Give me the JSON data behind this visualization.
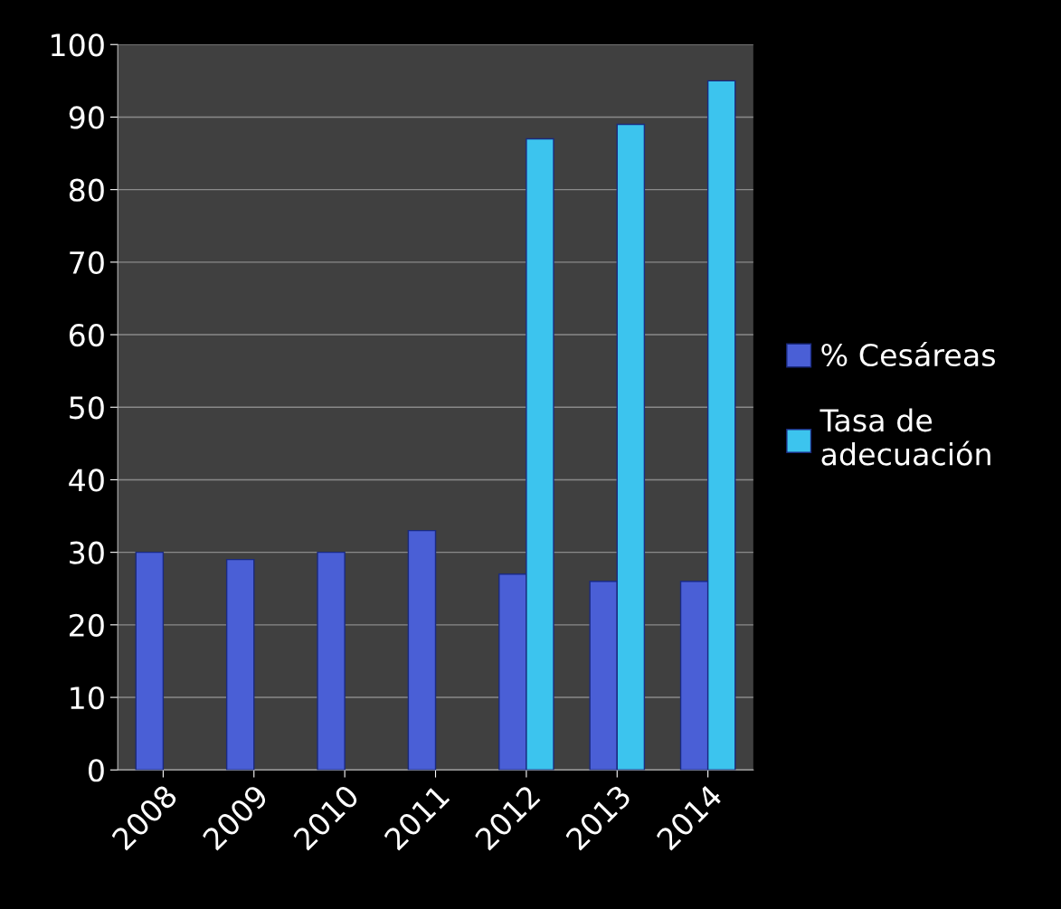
{
  "chart_data": {
    "type": "bar",
    "categories": [
      "2008",
      "2009",
      "2010",
      "2011",
      "2012",
      "2013",
      "2014"
    ],
    "series": [
      {
        "name": "% Cesáreas",
        "color": "#4a5fd6",
        "values": [
          30,
          29,
          30,
          33,
          27,
          26,
          26
        ]
      },
      {
        "name": "Tasa de\nadecuación",
        "color": "#3cc4ee",
        "values": [
          null,
          null,
          null,
          null,
          87,
          89,
          95
        ]
      }
    ],
    "ylim": [
      0,
      100
    ],
    "yticks": [
      0,
      10,
      20,
      30,
      40,
      50,
      60,
      70,
      80,
      90,
      100
    ],
    "grid": "y",
    "legend": "right"
  }
}
